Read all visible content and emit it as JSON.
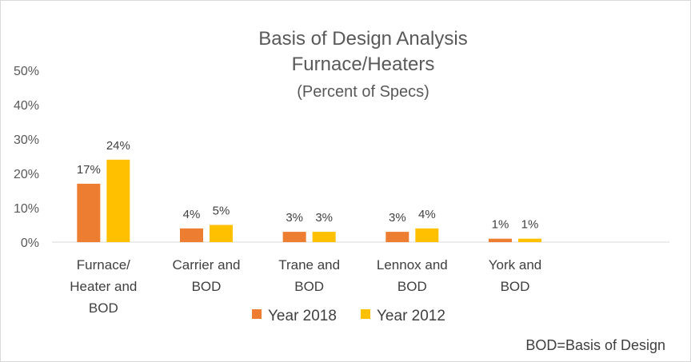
{
  "chart_data": {
    "type": "bar",
    "title": [
      "Basis of Design Analysis",
      "Furnace/Heaters"
    ],
    "subtitle": "(Percent of Specs)",
    "categories": [
      [
        "Furnace/",
        "Heater and",
        "BOD"
      ],
      [
        "Carrier and",
        "BOD"
      ],
      [
        "Trane and",
        "BOD"
      ],
      [
        "Lennox and",
        "BOD"
      ],
      [
        "York and",
        "BOD"
      ]
    ],
    "series": [
      {
        "name": "Year 2018",
        "color": "#ED7D31",
        "values": [
          17,
          4,
          3,
          3,
          1
        ],
        "labels": [
          "17%",
          "4%",
          "3%",
          "3%",
          "1%"
        ]
      },
      {
        "name": "Year 2012",
        "color": "#FFC000",
        "values": [
          24,
          5,
          3,
          4,
          1
        ],
        "labels": [
          "24%",
          "5%",
          "3%",
          "4%",
          "1%"
        ]
      }
    ],
    "ylim": [
      0,
      50
    ],
    "yticks": [
      "0%",
      "10%",
      "20%",
      "30%",
      "40%",
      "50%"
    ],
    "grid": false,
    "legend": "bottom",
    "xlabel": "",
    "ylabel": ""
  },
  "footnote": "BOD=Basis of Design"
}
